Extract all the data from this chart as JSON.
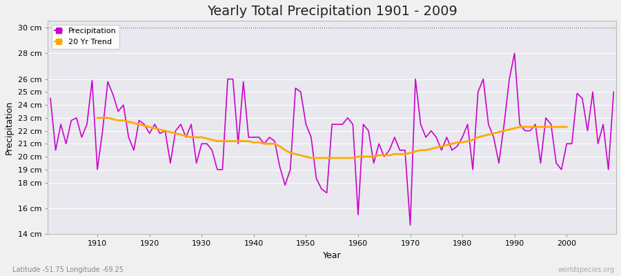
{
  "title": "Yearly Total Precipitation 1901 - 2009",
  "xlabel": "Year",
  "ylabel": "Precipitation",
  "subtitle": "Latitude -51.75 Longitude -69.25",
  "watermark": "worldspecies.org",
  "ylim": [
    14,
    30.5
  ],
  "yticks": [
    14,
    16,
    18,
    19,
    20,
    21,
    22,
    23,
    24,
    25,
    26,
    28,
    30
  ],
  "ytick_labels": [
    "14 cm",
    "16 cm",
    "18 cm",
    "19 cm",
    "20 cm",
    "21 cm",
    "22 cm",
    "23 cm",
    "24 cm",
    "25 cm",
    "26 cm",
    "28 cm",
    "30 cm"
  ],
  "xlim": [
    1900.5,
    2009.5
  ],
  "xticks": [
    1910,
    1920,
    1930,
    1940,
    1950,
    1960,
    1970,
    1980,
    1990,
    2000
  ],
  "precip_color": "#cc00cc",
  "trend_color": "#ffaa00",
  "fig_bg_color": "#f0f0f0",
  "plot_bg_color": "#e8e8ee",
  "grid_color": "#ffffff",
  "years": [
    1901,
    1902,
    1903,
    1904,
    1905,
    1906,
    1907,
    1908,
    1909,
    1910,
    1911,
    1912,
    1913,
    1914,
    1915,
    1916,
    1917,
    1918,
    1919,
    1920,
    1921,
    1922,
    1923,
    1924,
    1925,
    1926,
    1927,
    1928,
    1929,
    1930,
    1931,
    1932,
    1933,
    1934,
    1935,
    1936,
    1937,
    1938,
    1939,
    1940,
    1941,
    1942,
    1943,
    1944,
    1945,
    1946,
    1947,
    1948,
    1949,
    1950,
    1951,
    1952,
    1953,
    1954,
    1955,
    1956,
    1957,
    1958,
    1959,
    1960,
    1961,
    1962,
    1963,
    1964,
    1965,
    1966,
    1967,
    1968,
    1969,
    1970,
    1971,
    1972,
    1973,
    1974,
    1975,
    1976,
    1977,
    1978,
    1979,
    1980,
    1981,
    1982,
    1983,
    1984,
    1985,
    1986,
    1987,
    1988,
    1989,
    1990,
    1991,
    1992,
    1993,
    1994,
    1995,
    1996,
    1997,
    1998,
    1999,
    2000,
    2001,
    2002,
    2003,
    2004,
    2005,
    2006,
    2007,
    2008,
    2009
  ],
  "precip": [
    24.5,
    20.5,
    22.5,
    21.0,
    22.8,
    23.0,
    21.5,
    22.5,
    25.9,
    19.0,
    22.0,
    25.8,
    24.8,
    23.5,
    24.0,
    21.5,
    20.5,
    22.8,
    22.5,
    21.8,
    22.5,
    21.8,
    22.0,
    19.5,
    22.0,
    22.5,
    21.5,
    22.5,
    19.5,
    21.0,
    21.0,
    20.5,
    19.0,
    19.0,
    26.0,
    26.0,
    21.0,
    25.8,
    21.5,
    21.5,
    21.5,
    21.0,
    21.5,
    21.2,
    19.2,
    17.8,
    19.0,
    25.3,
    25.0,
    22.5,
    21.5,
    18.3,
    17.5,
    17.2,
    22.5,
    22.5,
    22.5,
    23.0,
    22.5,
    15.5,
    22.5,
    22.0,
    19.5,
    21.0,
    20.0,
    20.5,
    21.5,
    20.5,
    20.5,
    14.7,
    26.0,
    22.5,
    21.5,
    22.0,
    21.5,
    20.5,
    21.5,
    20.5,
    20.8,
    21.5,
    22.5,
    19.0,
    25.0,
    26.0,
    22.5,
    21.5,
    19.5,
    22.5,
    26.0,
    28.0,
    22.5,
    22.0,
    22.0,
    22.5,
    19.5,
    23.0,
    22.5,
    19.5,
    19.0,
    21.0,
    21.0,
    24.9,
    24.5,
    22.0,
    25.0,
    21.0,
    22.5,
    19.0,
    25.0
  ],
  "trend": [
    null,
    null,
    null,
    null,
    null,
    null,
    null,
    null,
    null,
    23.0,
    23.0,
    23.0,
    22.9,
    22.8,
    22.8,
    22.7,
    22.6,
    22.5,
    22.4,
    22.3,
    22.2,
    22.1,
    22.0,
    21.9,
    21.8,
    21.7,
    21.6,
    21.5,
    21.5,
    21.5,
    21.4,
    21.3,
    21.2,
    21.2,
    21.2,
    21.2,
    21.2,
    21.2,
    21.2,
    21.1,
    21.1,
    21.0,
    21.0,
    21.0,
    20.8,
    20.5,
    20.3,
    20.2,
    20.1,
    20.0,
    19.9,
    19.9,
    19.9,
    19.9,
    19.9,
    19.9,
    19.9,
    19.9,
    19.9,
    20.0,
    20.0,
    20.0,
    20.0,
    20.1,
    20.1,
    20.1,
    20.2,
    20.2,
    20.2,
    20.3,
    20.4,
    20.5,
    20.5,
    20.6,
    20.7,
    20.8,
    20.9,
    21.0,
    21.1,
    21.1,
    21.2,
    21.3,
    21.5,
    21.6,
    21.7,
    21.8,
    21.9,
    22.0,
    22.1,
    22.2,
    22.3,
    22.3,
    22.3,
    22.3,
    22.3,
    22.3,
    22.3,
    22.3,
    22.3,
    22.3,
    null,
    null,
    null,
    null,
    null,
    null,
    null,
    null,
    null
  ],
  "title_fontsize": 14,
  "axis_label_fontsize": 9,
  "tick_fontsize": 8
}
